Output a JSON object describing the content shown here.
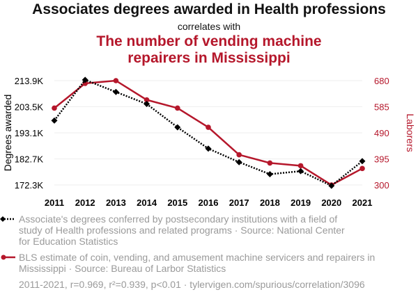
{
  "chart_data": {
    "type": "line",
    "title": "Associates degrees awarded in Health professions",
    "subtitle": "correlates with",
    "title2_lines": [
      "The number of vending machine",
      "repairers in Mississippi"
    ],
    "x": [
      2011,
      2012,
      2013,
      2014,
      2015,
      2016,
      2017,
      2018,
      2019,
      2020,
      2021
    ],
    "series": [
      {
        "name": "Associate's degrees conferred by postsecondary institutions with a field of study of Health professions and related programs · Source: National Center for Education Statistics",
        "legend_lines": [
          "Associate's degrees conferred by postsecondary institutions with a field of",
          "study of Health professions and related programs · Source: National Center",
          "for Education Statistics"
        ],
        "axis": "left",
        "color": "#000000",
        "style": "dotted",
        "marker": "diamond",
        "values": [
          198000,
          214200,
          209400,
          204600,
          195300,
          186800,
          181400,
          176600,
          177800,
          172000,
          181800
        ]
      },
      {
        "name": "BLS estimate of coin, vending, and amusement machine servicers and repairers in Mississippi · Source: Bureau of Larbor Statistics",
        "legend_lines": [
          "BLS estimate of coin, vending, and amusement machine servicers and repairers in",
          "Mississippi · Source: Bureau of Larbor Statistics"
        ],
        "axis": "right",
        "color": "#b5172b",
        "style": "solid",
        "marker": "circle",
        "values": [
          580,
          670,
          680,
          610,
          580,
          510,
          410,
          380,
          370,
          300,
          360
        ]
      }
    ],
    "ylabel": "Degrees awarded",
    "ylabel_right": "Laborers",
    "ylim": [
      172300,
      213900
    ],
    "ylim_right": [
      300,
      680
    ],
    "yticks": [
      "172.3K",
      "182.7K",
      "193.1K",
      "203.5K",
      "213.9K"
    ],
    "yticks_right": [
      "300",
      "395",
      "490",
      "585",
      "680"
    ],
    "footer": "2011-2021, r=0.969, r²=0.939, p<0.01 · tylervigen.com/spurious/correlation/3096"
  },
  "colors": {
    "accent": "#b5172b",
    "series1": "#000000",
    "muted": "#9a9a9a",
    "grid": "#eeeeee"
  }
}
